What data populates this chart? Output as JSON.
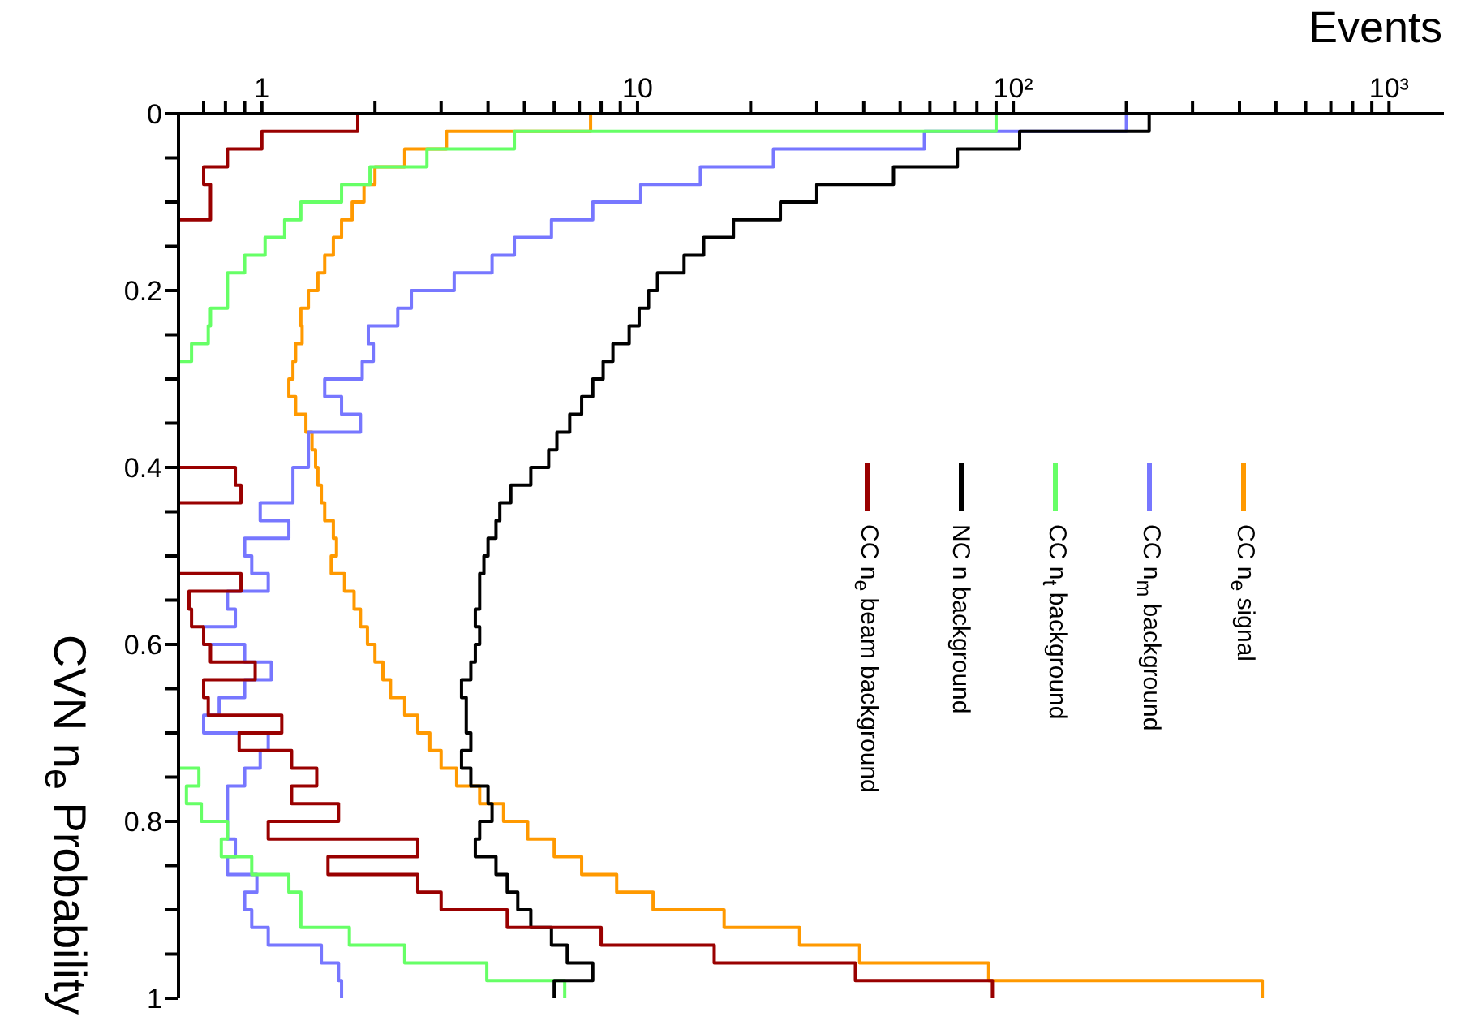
{
  "chart_data": {
    "type": "histogram",
    "orientation": "horizontal",
    "xlabel": "Events",
    "ylabel": "CVN n$_{e}$ Probability",
    "bins": [
      0,
      0.02,
      0.04,
      0.06,
      0.08,
      0.1,
      0.12,
      0.14,
      0.16,
      0.18,
      0.2,
      0.22,
      0.24,
      0.26,
      0.28,
      0.3,
      0.32,
      0.34,
      0.36,
      0.38,
      0.4,
      0.42,
      0.44,
      0.46,
      0.48,
      0.5,
      0.52,
      0.54,
      0.56,
      0.58,
      0.6,
      0.62,
      0.64,
      0.66,
      0.68,
      0.7,
      0.72,
      0.74,
      0.76,
      0.78,
      0.8,
      0.82,
      0.84,
      0.86,
      0.88,
      0.9,
      0.92,
      0.94,
      0.96,
      0.98,
      1
    ],
    "series": [
      {
        "name": "CC n$_{e}$ signal",
        "color": "#ff9900",
        "values": [
          7.5,
          3.1,
          2.4,
          2.0,
          1.87,
          1.74,
          1.63,
          1.55,
          1.47,
          1.41,
          1.33,
          1.27,
          1.28,
          1.23,
          1.21,
          1.18,
          1.23,
          1.31,
          1.36,
          1.39,
          1.41,
          1.44,
          1.47,
          1.55,
          1.58,
          1.53,
          1.66,
          1.76,
          1.83,
          1.91,
          2.0,
          2.1,
          2.2,
          2.4,
          2.6,
          2.8,
          3.0,
          3.3,
          3.8,
          4.4,
          5.1,
          6.0,
          7.1,
          8.8,
          11,
          17,
          27,
          39,
          86,
          460
        ]
      },
      {
        "name": "CC n$_{m}$ background",
        "color": "#7777ff",
        "values": [
          200,
          58,
          23,
          14.7,
          10.2,
          7.6,
          5.9,
          4.7,
          4.1,
          3.25,
          2.5,
          2.3,
          1.92,
          1.98,
          1.85,
          1.47,
          1.63,
          1.83,
          1.33,
          1.33,
          1.21,
          1.21,
          0.99,
          1.18,
          0.9,
          0.94,
          1.04,
          0.81,
          0.85,
          0.7,
          0.9,
          1.06,
          0.9,
          0.77,
          0.7,
          1.04,
          0.99,
          0.9,
          0.81,
          0.81,
          0.81,
          0.85,
          0.81,
          0.97,
          0.9,
          0.94,
          1.04,
          1.44,
          1.6,
          1.63
        ]
      },
      {
        "name": "CC n$_{t}$ background",
        "color": "#66ff66",
        "values": [
          90,
          4.7,
          2.75,
          1.94,
          1.63,
          1.27,
          1.15,
          1.02,
          0.9,
          0.81,
          0.81,
          0.73,
          0.72,
          0.65,
          null,
          null,
          null,
          null,
          null,
          null,
          null,
          null,
          null,
          null,
          null,
          null,
          null,
          null,
          null,
          null,
          null,
          null,
          null,
          null,
          null,
          null,
          null,
          0.68,
          0.63,
          0.69,
          0.81,
          0.78,
          0.94,
          1.18,
          1.27,
          1.27,
          1.71,
          2.4,
          3.97,
          6.4
        ]
      },
      {
        "name": "NC n background",
        "color": "#000000",
        "values": [
          230,
          104,
          71,
          48,
          30,
          24,
          18,
          15,
          13.3,
          11.3,
          10.7,
          10.1,
          9.5,
          8.6,
          8.1,
          7.6,
          7.1,
          6.6,
          6.1,
          5.8,
          5.2,
          4.6,
          4.3,
          4.2,
          4.0,
          3.9,
          3.8,
          3.8,
          3.7,
          3.8,
          3.7,
          3.6,
          3.4,
          3.5,
          3.5,
          3.6,
          3.4,
          3.6,
          4.0,
          4.1,
          3.8,
          3.7,
          4.2,
          4.5,
          4.8,
          5.2,
          5.9,
          6.5,
          7.6,
          6
        ]
      },
      {
        "name": "CC n$_{e}$ beam background",
        "color": "#990000",
        "values": [
          1.8,
          1.0,
          0.81,
          0.7,
          0.73,
          0.73,
          null,
          null,
          null,
          null,
          null,
          null,
          null,
          null,
          null,
          null,
          null,
          null,
          null,
          null,
          0.85,
          0.88,
          null,
          null,
          null,
          null,
          0.88,
          0.64,
          0.65,
          0.7,
          0.73,
          0.96,
          0.7,
          0.72,
          1.13,
          0.87,
          1.2,
          1.4,
          1.2,
          1.6,
          1.04,
          2.6,
          1.5,
          2.6,
          3.0,
          4.5,
          8,
          16,
          38,
          88
        ]
      }
    ],
    "ylim": [
      1,
      0
    ],
    "yticks": [
      0,
      {
        "value": 0.05,
        "label": null
      },
      {
        "value": 0.1,
        "label": null
      },
      {
        "value": 0.15,
        "label": null
      },
      0.2,
      {
        "value": 0.25,
        "label": null
      },
      {
        "value": 0.3,
        "label": null
      },
      {
        "value": 0.35,
        "label": null
      },
      0.4,
      {
        "value": 0.45,
        "label": null
      },
      {
        "value": 0.5,
        "label": null
      },
      {
        "value": 0.55,
        "label": null
      },
      0.6,
      {
        "value": 0.65,
        "label": null
      },
      {
        "value": 0.7,
        "label": null
      },
      {
        "value": 0.75,
        "label": null
      },
      0.8,
      {
        "value": 0.85,
        "label": null
      },
      {
        "value": 0.9,
        "label": null
      },
      {
        "value": 0.95,
        "label": null
      },
      1
    ],
    "xlim": [
      0.6,
      1400
    ],
    "xticks": [
      {
        "value": 0.7,
        "label": null
      },
      {
        "value": 0.8,
        "label": null
      },
      {
        "value": 0.9,
        "label": null
      },
      1,
      {
        "value": 2,
        "label": null
      },
      {
        "value": 3,
        "label": null
      },
      {
        "value": 4,
        "label": null
      },
      {
        "value": 5,
        "label": null
      },
      {
        "value": 6,
        "label": null
      },
      {
        "value": 7,
        "label": null
      },
      {
        "value": 8,
        "label": null
      },
      {
        "value": 9,
        "label": null
      },
      10,
      {
        "value": 20,
        "label": null
      },
      {
        "value": 30,
        "label": null
      },
      {
        "value": 40,
        "label": null
      },
      {
        "value": 50,
        "label": null
      },
      {
        "value": 60,
        "label": null
      },
      {
        "value": 70,
        "label": null
      },
      {
        "value": 80,
        "label": null
      },
      {
        "value": 90,
        "label": null
      },
      {
        "value": 100,
        "label": "10²"
      },
      {
        "value": 200,
        "label": null
      },
      {
        "value": 300,
        "label": null
      },
      {
        "value": 400,
        "label": null
      },
      {
        "value": 500,
        "label": null
      },
      {
        "value": 600,
        "label": null
      },
      {
        "value": 700,
        "label": null
      },
      {
        "value": 800,
        "label": null
      },
      {
        "value": 900,
        "label": null
      },
      {
        "value": 1000,
        "label": "10³"
      }
    ],
    "log": "x",
    "legend": "right"
  }
}
